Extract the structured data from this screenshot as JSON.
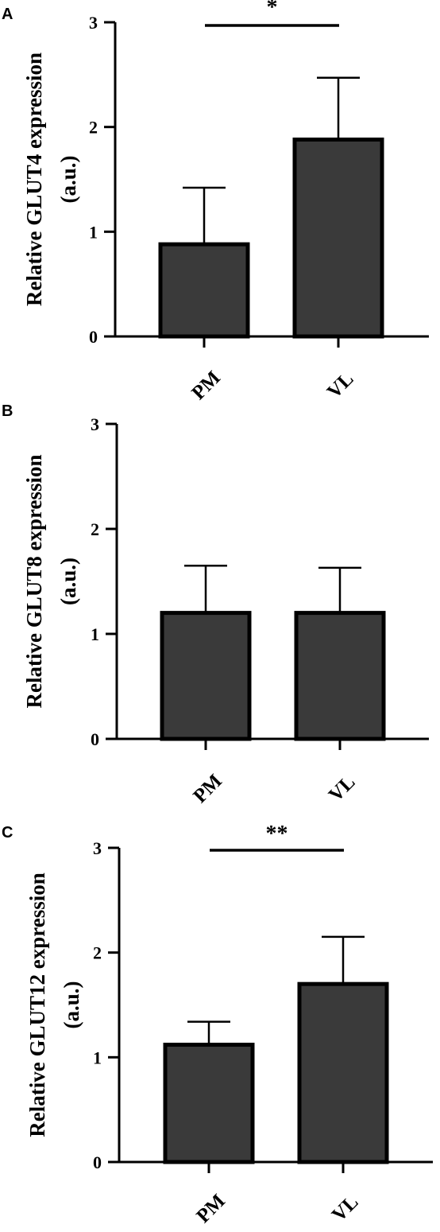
{
  "chart_data": [
    {
      "type": "bar",
      "panel": "A",
      "ylabel_line1": "Relative GLUT4 expression",
      "ylabel_line2": "(a.u.)",
      "categories": [
        "PM",
        "VL"
      ],
      "values": [
        0.88,
        1.88
      ],
      "errors": [
        0.54,
        0.59
      ],
      "ylim": [
        0,
        3
      ],
      "yticks": [
        "0",
        "1",
        "2",
        "3"
      ],
      "significance": "*",
      "bar_color": "#3a3a3a"
    },
    {
      "type": "bar",
      "panel": "B",
      "ylabel_line1": "Relative GLUT8 expression",
      "ylabel_line2": "(a.u.)",
      "categories": [
        "PM",
        "VL"
      ],
      "values": [
        1.2,
        1.2
      ],
      "errors": [
        0.45,
        0.43
      ],
      "ylim": [
        0,
        3
      ],
      "yticks": [
        "0",
        "1",
        "2",
        "3"
      ],
      "significance": "",
      "bar_color": "#3a3a3a"
    },
    {
      "type": "bar",
      "panel": "C",
      "ylabel_line1": "Relative GLUT12 expression",
      "ylabel_line2": "(a.u.)",
      "categories": [
        "PM",
        "VL"
      ],
      "values": [
        1.12,
        1.7
      ],
      "errors": [
        0.22,
        0.45
      ],
      "ylim": [
        0,
        3
      ],
      "yticks": [
        "0",
        "1",
        "2",
        "3"
      ],
      "significance": "**",
      "bar_color": "#3a3a3a"
    }
  ]
}
